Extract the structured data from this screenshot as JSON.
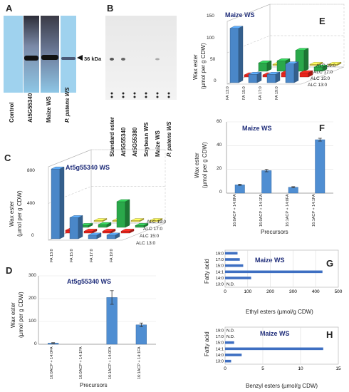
{
  "panels": {
    "A": {
      "letter": "A",
      "lanes": [
        "Control",
        "At5G55340",
        "Maize WS",
        "P. patens WS"
      ],
      "marker": "36 kDa"
    },
    "B": {
      "letter": "B",
      "lanes": [
        "Standard ester",
        "At5G55340",
        "At5G55380",
        "Soybean WS",
        "Maize WS",
        "P. patens WS"
      ]
    },
    "C": {
      "letter": "C",
      "title": "At5g55340 WS",
      "ylabel1": "Wax ester",
      "ylabel2": "(µmol per g CDW)",
      "yticks": [
        "800",
        "400",
        "0"
      ],
      "facids": [
        "FA 13:0",
        "FA 15:0",
        "FA 17:0",
        "FA 19:0"
      ],
      "alcs": [
        "ALC 19:0",
        "ALC 17:0",
        "ALC 15:0",
        "ALC 13:0"
      ]
    },
    "D": {
      "letter": "D",
      "title": "At5g55340 WS",
      "ylabel1": "Wax ester",
      "ylabel2": "(µmol per g CDW)",
      "yticks": [
        "300",
        "200",
        "100",
        "0"
      ],
      "xlabel": "Precursors",
      "cats": [
        "16:0ACP + 14:0FA",
        "16:0ACP + 14:1FA",
        "16:1ACP + 14:0FA",
        "16:1ACP + 14:1FA"
      ]
    },
    "E": {
      "letter": "E",
      "title": "Maize WS",
      "ylabel1": "Wax ester",
      "ylabel2": "(µmol per g CDW)",
      "yticks": [
        "150",
        "100",
        "50",
        "0"
      ],
      "facids": [
        "FA 13:0",
        "FA 15:0",
        "FA 17:0",
        "FA 19:0"
      ],
      "alcs": [
        "ALC 19:0",
        "ALC 17:0",
        "ALC 15:0",
        "ALC 13:0"
      ]
    },
    "F": {
      "letter": "F",
      "title": "Maize WS",
      "ylabel1": "Wax ester",
      "ylabel2": "(µmol per g CDW)",
      "yticks": [
        "60",
        "40",
        "20",
        "0"
      ],
      "xlabel": "Precursors",
      "cats": [
        "16:0ACP + 14:0FA",
        "16:0ACP + 14:1FA",
        "16:1ACP + 14:0FA",
        "16:1ACP + 14:1FA"
      ]
    },
    "G": {
      "letter": "G",
      "title": "Maize WS",
      "ylabel": "Fatty acid",
      "xlabel": "Ethyl esters (µmol/g CDW)",
      "xticks": [
        "0",
        "100",
        "200",
        "300",
        "400",
        "500"
      ],
      "cats": [
        "19:0",
        "17:0",
        "15:0",
        "14:1",
        "14:0",
        "13:0"
      ],
      "nd": "N.D."
    },
    "H": {
      "letter": "H",
      "title": "Maize WS",
      "ylabel": "Fatty acid",
      "xlabel": "Benzyl esters (µmol/g CDW)",
      "xticks": [
        "0",
        "5",
        "10",
        "15"
      ],
      "cats": [
        "19:0",
        "17:0",
        "15:0",
        "14:1",
        "14:0",
        "13:0"
      ],
      "nd": "N.D."
    }
  },
  "colors": {
    "blue": "#4a87c8",
    "red": "#e8231c",
    "green": "#2aa84a",
    "yellow": "#e8d84a",
    "title": "#1f2d7a"
  },
  "chart_data": [
    {
      "type": "bar",
      "panel": "C",
      "z_categories": [
        "ALC 19:0",
        "ALC 17:0",
        "ALC 15:0",
        "ALC 13:0"
      ],
      "x_categories": [
        "FA 13:0",
        "FA 15:0",
        "FA 17:0",
        "FA 19:0"
      ],
      "ylim": [
        0,
        800
      ],
      "values": {
        "ALC 13:0": [
          760,
          230,
          40,
          40
        ],
        "ALC 15:0": [
          30,
          20,
          20,
          20
        ],
        "ALC 17:0": [
          20,
          30,
          280,
          20
        ],
        "ALC 19:0": [
          10,
          10,
          10,
          10
        ]
      }
    },
    {
      "type": "bar",
      "panel": "D",
      "categories": [
        "16:0ACP + 14:0FA",
        "16:0ACP + 14:1FA",
        "16:1ACP + 14:0FA",
        "16:1ACP + 14:1FA"
      ],
      "values": [
        5,
        0,
        205,
        85
      ],
      "errors": [
        2,
        0,
        30,
        8
      ],
      "ylim": [
        0,
        300
      ]
    },
    {
      "type": "bar",
      "panel": "E",
      "z_categories": [
        "ALC 19:0",
        "ALC 17:0",
        "ALC 15:0",
        "ALC 13:0"
      ],
      "x_categories": [
        "FA 13:0",
        "FA 15:0",
        "FA 17:0",
        "FA 19:0"
      ],
      "ylim": [
        0,
        150
      ],
      "values": {
        "ALC 13:0": [
          130,
          20,
          20,
          45
        ],
        "ALC 15:0": [
          5,
          5,
          10,
          10
        ],
        "ALC 17:0": [
          20,
          25,
          50,
          10
        ],
        "ALC 19:0": [
          3,
          3,
          3,
          3
        ]
      }
    },
    {
      "type": "bar",
      "panel": "F",
      "categories": [
        "16:0ACP + 14:0FA",
        "16:0ACP + 14:1FA",
        "16:1ACP + 14:0FA",
        "16:1ACP + 14:1FA"
      ],
      "values": [
        7,
        19,
        5,
        45
      ],
      "errors": [
        0.5,
        1,
        0.5,
        1.2
      ],
      "ylim": [
        0,
        60
      ]
    },
    {
      "type": "bar",
      "panel": "G",
      "orientation": "horizontal",
      "categories": [
        "19:0",
        "17:0",
        "15:0",
        "14:1",
        "14:0",
        "13:0"
      ],
      "values": [
        55,
        65,
        80,
        430,
        115,
        0
      ],
      "xlim": [
        0,
        500
      ]
    },
    {
      "type": "bar",
      "panel": "H",
      "orientation": "horizontal",
      "categories": [
        "19:0",
        "17:0",
        "15:0",
        "14:1",
        "14:0",
        "13:0"
      ],
      "values": [
        0,
        0,
        1.2,
        13,
        2.2,
        0.8
      ],
      "xlim": [
        0,
        15
      ]
    }
  ]
}
